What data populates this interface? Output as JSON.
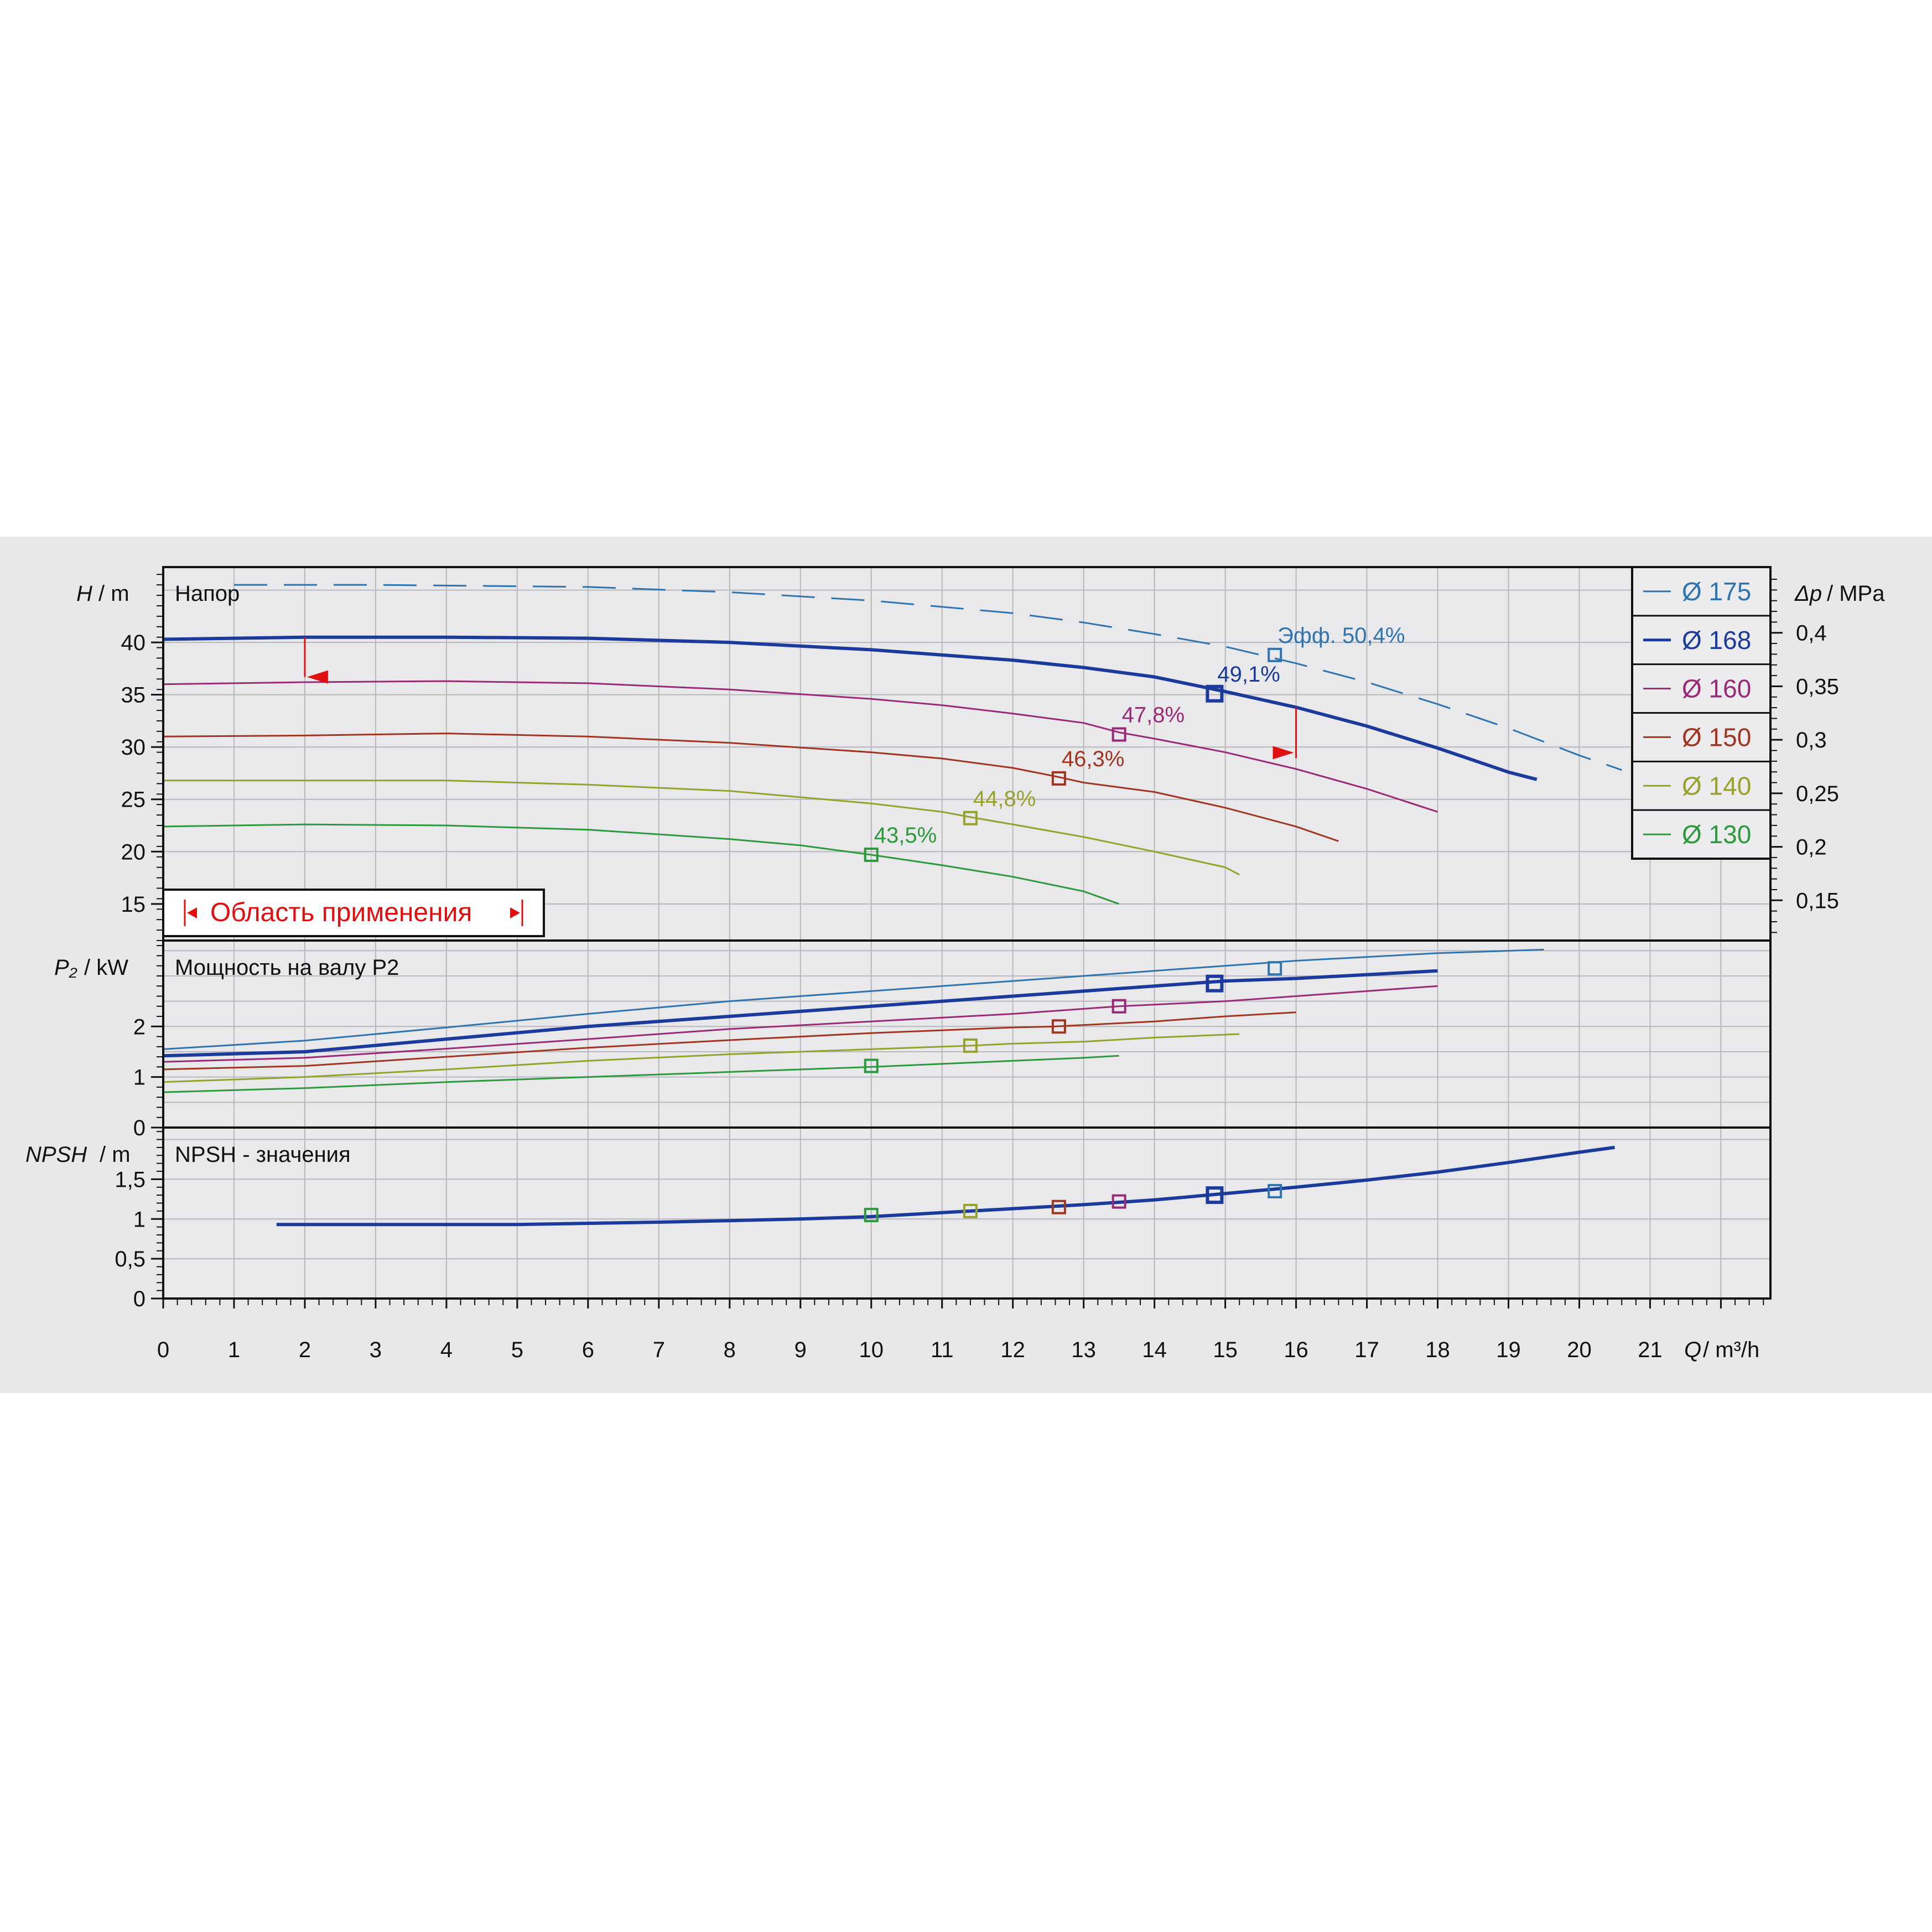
{
  "chart_data": {
    "type": "line",
    "x_axis": {
      "label_var": "Q",
      "label_unit": "/ m³/h",
      "range": [
        0,
        22.7
      ],
      "ticks": [
        "0",
        "1",
        "2",
        "3",
        "4",
        "5",
        "6",
        "7",
        "8",
        "9",
        "10",
        "11",
        "12",
        "13",
        "14",
        "15",
        "16",
        "17",
        "18",
        "19",
        "20",
        "21"
      ]
    },
    "panels": {
      "head": {
        "title": "Напор",
        "y_label_var": "H",
        "y_label_unit": "/ m",
        "y_range": [
          11.5,
          47.2
        ],
        "y_ticks": [
          "15",
          "20",
          "25",
          "30",
          "35",
          "40"
        ],
        "y_tick_values": [
          15,
          20,
          25,
          30,
          35,
          40
        ],
        "right_label_var": "Δp",
        "right_label_unit": "/ MPa",
        "right_ticks": [
          "0,15",
          "0,2",
          "0,25",
          "0,3",
          "0,35",
          "0,4"
        ],
        "right_tick_values": [
          0.15,
          0.2,
          0.25,
          0.3,
          0.35,
          0.4
        ],
        "application_area_label": "Область применения",
        "application_area_q": [
          2.0,
          16.0
        ],
        "application_area_h": [
          40.5,
          33.8
        ]
      },
      "power": {
        "title": "Мощность на валу P2",
        "y_label_var": "P₂",
        "y_label_unit": "/ kW",
        "y_range": [
          0,
          3.7
        ],
        "y_ticks": [
          "0",
          "1",
          "2"
        ],
        "y_tick_values": [
          0,
          1,
          2
        ]
      },
      "npsh": {
        "title": "NPSH - значения",
        "y_label_var": "NPSH",
        "y_label_unit": "/ m",
        "y_range": [
          0,
          2.15
        ],
        "y_ticks": [
          "0",
          "0,5",
          "1",
          "1,5"
        ],
        "y_tick_values": [
          0,
          0.5,
          1,
          1.5
        ]
      }
    },
    "series": [
      {
        "name": "Ø 175",
        "color": "#2e74b0",
        "head": [
          [
            1,
            45.5
          ],
          [
            3,
            45.5
          ],
          [
            6,
            45.3
          ],
          [
            8,
            44.8
          ],
          [
            10,
            44.0
          ],
          [
            12,
            42.8
          ],
          [
            13,
            41.9
          ],
          [
            14,
            40.8
          ],
          [
            15,
            39.6
          ],
          [
            16,
            38.0
          ],
          [
            17,
            36.2
          ],
          [
            18,
            34.1
          ],
          [
            19,
            31.8
          ],
          [
            20,
            29.2
          ],
          [
            20.6,
            27.8
          ]
        ],
        "power": [
          [
            0,
            1.55
          ],
          [
            2,
            1.72
          ],
          [
            4,
            1.98
          ],
          [
            6,
            2.25
          ],
          [
            8,
            2.5
          ],
          [
            10,
            2.7
          ],
          [
            12,
            2.9
          ],
          [
            14,
            3.1
          ],
          [
            16,
            3.3
          ],
          [
            18,
            3.45
          ],
          [
            19.5,
            3.52
          ]
        ],
        "op": {
          "q": 15.7,
          "h": 38.8,
          "p": 3.15,
          "npsh": 1.35,
          "eff": "Эфф.   50,4%"
        }
      },
      {
        "name": "Ø 168",
        "color": "#1a3a9c",
        "head": [
          [
            0,
            40.3
          ],
          [
            2,
            40.5
          ],
          [
            4,
            40.5
          ],
          [
            6,
            40.4
          ],
          [
            8,
            40.0
          ],
          [
            10,
            39.3
          ],
          [
            12,
            38.3
          ],
          [
            13,
            37.6
          ],
          [
            14,
            36.7
          ],
          [
            15,
            35.3
          ],
          [
            16,
            33.8
          ],
          [
            17,
            32.0
          ],
          [
            18,
            29.9
          ],
          [
            19,
            27.6
          ],
          [
            19.4,
            26.9
          ]
        ],
        "power": [
          [
            0,
            1.42
          ],
          [
            2,
            1.5
          ],
          [
            4,
            1.75
          ],
          [
            6,
            2.0
          ],
          [
            8,
            2.2
          ],
          [
            10,
            2.4
          ],
          [
            12,
            2.6
          ],
          [
            14,
            2.8
          ],
          [
            15,
            2.9
          ],
          [
            16,
            2.95
          ],
          [
            18,
            3.1
          ]
        ],
        "op": {
          "q": 14.85,
          "h": 35.1,
          "p": 2.85,
          "npsh": 1.3,
          "eff": "49,1%"
        }
      },
      {
        "name": "Ø 160",
        "color": "#9a2a78",
        "head": [
          [
            0,
            36.0
          ],
          [
            2,
            36.2
          ],
          [
            4,
            36.3
          ],
          [
            6,
            36.1
          ],
          [
            8,
            35.5
          ],
          [
            10,
            34.6
          ],
          [
            11,
            34.0
          ],
          [
            12,
            33.2
          ],
          [
            13,
            32.3
          ],
          [
            13.5,
            31.4
          ],
          [
            14,
            30.8
          ],
          [
            15,
            29.5
          ],
          [
            16,
            27.9
          ],
          [
            17,
            26.0
          ],
          [
            18,
            23.8
          ]
        ],
        "power": [
          [
            0,
            1.3
          ],
          [
            2,
            1.38
          ],
          [
            4,
            1.56
          ],
          [
            6,
            1.75
          ],
          [
            8,
            1.95
          ],
          [
            10,
            2.1
          ],
          [
            12,
            2.25
          ],
          [
            13.5,
            2.4
          ],
          [
            15,
            2.5
          ],
          [
            16,
            2.6
          ],
          [
            18,
            2.8
          ]
        ],
        "op": {
          "q": 13.5,
          "h": 31.2,
          "p": 2.4,
          "npsh": 1.22,
          "eff": "47,8%"
        }
      },
      {
        "name": "Ø 150",
        "color": "#a23520",
        "head": [
          [
            0,
            31.0
          ],
          [
            2,
            31.1
          ],
          [
            4,
            31.3
          ],
          [
            6,
            31.0
          ],
          [
            8,
            30.4
          ],
          [
            10,
            29.5
          ],
          [
            11,
            28.9
          ],
          [
            12,
            28.0
          ],
          [
            12.6,
            27.2
          ],
          [
            13,
            26.6
          ],
          [
            14,
            25.7
          ],
          [
            15,
            24.2
          ],
          [
            16,
            22.4
          ],
          [
            16.6,
            21.0
          ]
        ],
        "power": [
          [
            0,
            1.15
          ],
          [
            2,
            1.22
          ],
          [
            4,
            1.4
          ],
          [
            6,
            1.58
          ],
          [
            8,
            1.73
          ],
          [
            10,
            1.87
          ],
          [
            12,
            1.98
          ],
          [
            12.6,
            2.0
          ],
          [
            14,
            2.1
          ],
          [
            15,
            2.2
          ],
          [
            16,
            2.28
          ]
        ],
        "op": {
          "q": 12.65,
          "h": 27.0,
          "p": 2.0,
          "npsh": 1.15,
          "eff": "46,3%"
        }
      },
      {
        "name": "Ø 140",
        "color": "#96a22a",
        "head": [
          [
            0,
            26.8
          ],
          [
            2,
            26.8
          ],
          [
            4,
            26.8
          ],
          [
            6,
            26.4
          ],
          [
            8,
            25.8
          ],
          [
            10,
            24.6
          ],
          [
            11,
            23.8
          ],
          [
            11.4,
            23.3
          ],
          [
            12,
            22.6
          ],
          [
            13,
            21.4
          ],
          [
            14,
            20.0
          ],
          [
            15,
            18.5
          ],
          [
            15.2,
            17.8
          ]
        ],
        "power": [
          [
            0,
            0.9
          ],
          [
            2,
            1.0
          ],
          [
            4,
            1.15
          ],
          [
            6,
            1.32
          ],
          [
            8,
            1.45
          ],
          [
            10,
            1.55
          ],
          [
            11.4,
            1.62
          ],
          [
            12,
            1.66
          ],
          [
            13,
            1.7
          ],
          [
            14,
            1.78
          ],
          [
            15.2,
            1.85
          ]
        ],
        "op": {
          "q": 11.4,
          "h": 23.2,
          "p": 1.62,
          "npsh": 1.1,
          "eff": "44,8%"
        }
      },
      {
        "name": "Ø 130",
        "color": "#2c9a3c",
        "head": [
          [
            0,
            22.4
          ],
          [
            2,
            22.6
          ],
          [
            4,
            22.5
          ],
          [
            6,
            22.1
          ],
          [
            8,
            21.2
          ],
          [
            9,
            20.6
          ],
          [
            10,
            19.7
          ],
          [
            11,
            18.7
          ],
          [
            12,
            17.6
          ],
          [
            13,
            16.2
          ],
          [
            13.5,
            15.0
          ]
        ],
        "power": [
          [
            0,
            0.7
          ],
          [
            2,
            0.78
          ],
          [
            4,
            0.9
          ],
          [
            6,
            1.0
          ],
          [
            8,
            1.1
          ],
          [
            10,
            1.2
          ],
          [
            11,
            1.26
          ],
          [
            12,
            1.32
          ],
          [
            13,
            1.38
          ],
          [
            13.5,
            1.42
          ]
        ],
        "op": {
          "q": 10.0,
          "h": 19.7,
          "p": 1.22,
          "npsh": 1.05,
          "eff": "43,5%"
        }
      }
    ],
    "npsh_curve": [
      [
        1.6,
        0.93
      ],
      [
        3,
        0.93
      ],
      [
        5,
        0.93
      ],
      [
        7,
        0.96
      ],
      [
        8,
        0.98
      ],
      [
        9,
        1.0
      ],
      [
        10,
        1.03
      ],
      [
        11,
        1.08
      ],
      [
        12,
        1.13
      ],
      [
        13,
        1.18
      ],
      [
        14,
        1.24
      ],
      [
        15,
        1.32
      ],
      [
        16,
        1.4
      ],
      [
        17,
        1.49
      ],
      [
        18,
        1.59
      ],
      [
        19,
        1.71
      ],
      [
        20,
        1.84
      ],
      [
        20.5,
        1.9
      ]
    ],
    "npsh_color": "#1a3a9c",
    "legend_placement": "right",
    "grid": true
  }
}
